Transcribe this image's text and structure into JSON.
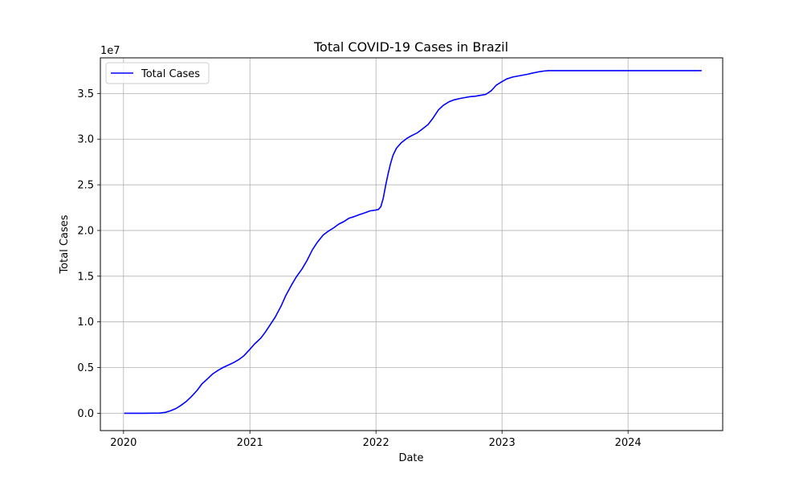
{
  "chart_data": {
    "type": "line",
    "title": "Total COVID-19 Cases in Brazil",
    "xlabel": "Date",
    "ylabel": "Total Cases",
    "y_offset_label": "1e7",
    "x_ticks": [
      "2020",
      "2021",
      "2022",
      "2023",
      "2024"
    ],
    "y_ticks": [
      "0.0",
      "0.5",
      "1.0",
      "1.5",
      "2.0",
      "2.5",
      "3.0",
      "3.5"
    ],
    "xlim": [
      "2019-10-26",
      "2024-10-01"
    ],
    "ylim": [
      -1900000,
      38900000
    ],
    "grid": true,
    "legend": "upper left",
    "series": [
      {
        "name": "Total Cases",
        "color": "#0000ff",
        "x": [
          "2020-01-03",
          "2020-03-01",
          "2020-04-15",
          "2020-05-01",
          "2020-05-15",
          "2020-06-01",
          "2020-06-15",
          "2020-07-01",
          "2020-07-15",
          "2020-08-01",
          "2020-08-15",
          "2020-09-01",
          "2020-09-15",
          "2020-10-01",
          "2020-10-15",
          "2020-11-01",
          "2020-11-15",
          "2020-12-01",
          "2020-12-15",
          "2021-01-01",
          "2021-01-15",
          "2021-02-01",
          "2021-02-15",
          "2021-03-01",
          "2021-03-15",
          "2021-04-01",
          "2021-04-15",
          "2021-05-01",
          "2021-05-15",
          "2021-06-01",
          "2021-06-15",
          "2021-07-01",
          "2021-07-15",
          "2021-08-01",
          "2021-08-15",
          "2021-09-01",
          "2021-09-15",
          "2021-10-01",
          "2021-10-15",
          "2021-11-01",
          "2021-11-15",
          "2021-12-01",
          "2021-12-15",
          "2022-01-01",
          "2022-01-08",
          "2022-01-15",
          "2022-01-22",
          "2022-01-29",
          "2022-02-05",
          "2022-02-12",
          "2022-02-19",
          "2022-03-01",
          "2022-03-15",
          "2022-04-01",
          "2022-04-15",
          "2022-05-01",
          "2022-05-15",
          "2022-06-01",
          "2022-06-15",
          "2022-07-01",
          "2022-07-15",
          "2022-08-01",
          "2022-08-15",
          "2022-09-01",
          "2022-09-15",
          "2022-10-01",
          "2022-10-15",
          "2022-11-01",
          "2022-11-15",
          "2022-12-01",
          "2022-12-15",
          "2023-01-01",
          "2023-01-15",
          "2023-02-01",
          "2023-03-01",
          "2023-03-15",
          "2023-04-01",
          "2023-04-15",
          "2023-05-01",
          "2023-05-15",
          "2023-06-01",
          "2023-08-01",
          "2024-01-01",
          "2024-08-01"
        ],
        "y": [
          0,
          0,
          20000,
          100000,
          250000,
          520000,
          850000,
          1300000,
          1800000,
          2500000,
          3200000,
          3800000,
          4300000,
          4700000,
          5000000,
          5300000,
          5550000,
          5900000,
          6300000,
          7000000,
          7600000,
          8200000,
          8900000,
          9700000,
          10500000,
          11700000,
          12900000,
          14000000,
          14900000,
          15800000,
          16700000,
          17900000,
          18700000,
          19500000,
          19900000,
          20300000,
          20700000,
          21000000,
          21350000,
          21550000,
          21750000,
          21950000,
          22150000,
          22250000,
          22300000,
          22600000,
          23500000,
          24900000,
          26200000,
          27300000,
          28200000,
          29000000,
          29600000,
          30100000,
          30400000,
          30700000,
          31100000,
          31600000,
          32300000,
          33200000,
          33700000,
          34100000,
          34300000,
          34450000,
          34550000,
          34650000,
          34700000,
          34800000,
          34900000,
          35300000,
          35900000,
          36300000,
          36600000,
          36800000,
          37000000,
          37100000,
          37250000,
          37350000,
          37450000,
          37500000,
          37500000,
          37500000,
          37500000,
          37500000
        ]
      }
    ]
  }
}
